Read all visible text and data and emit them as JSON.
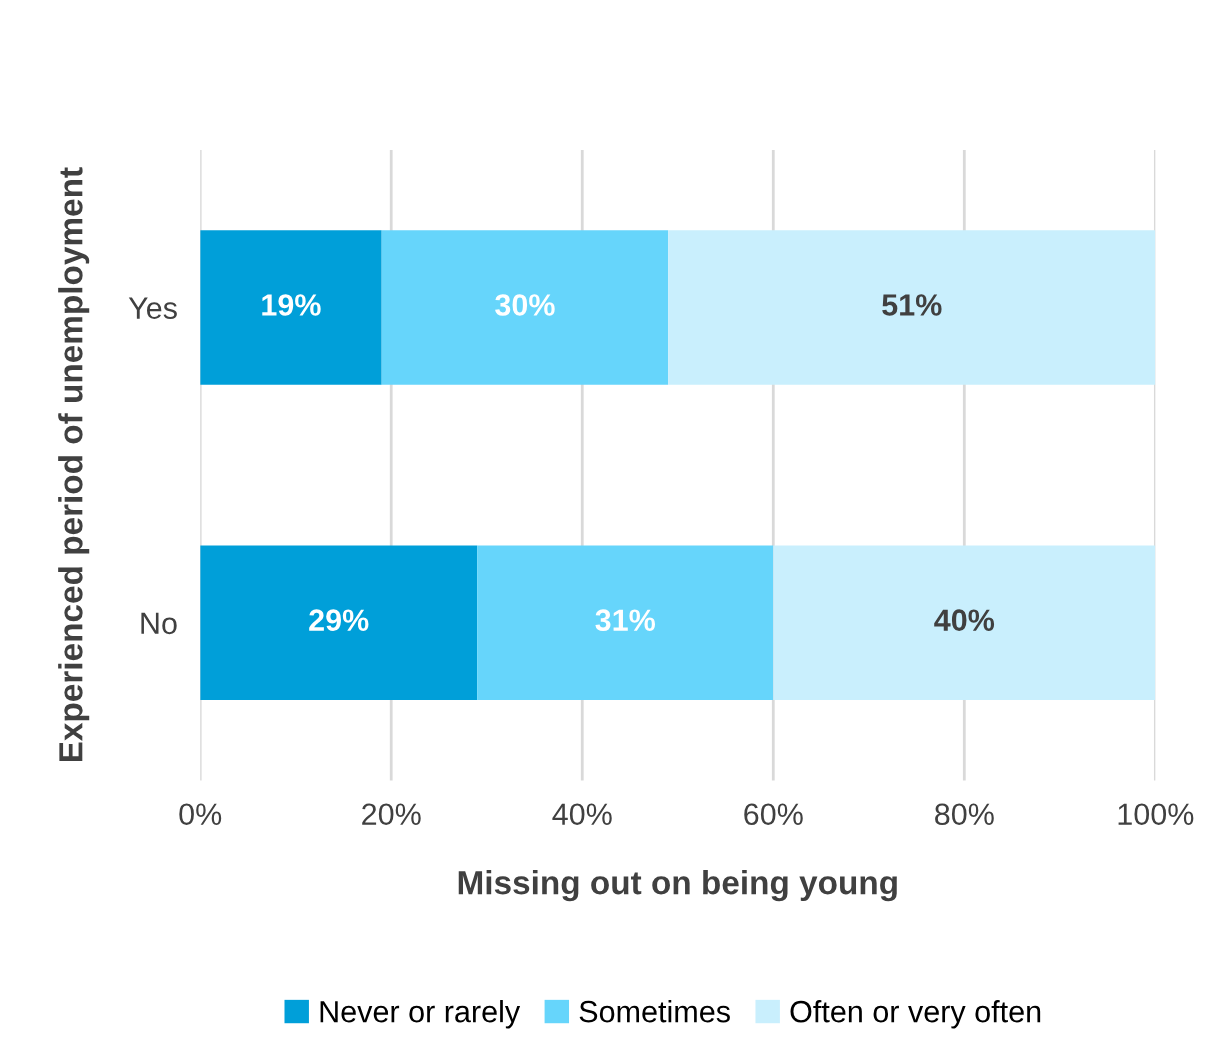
{
  "chart_data": {
    "type": "bar",
    "orientation": "horizontal",
    "stacked": true,
    "categories": [
      "Yes",
      "No"
    ],
    "series": [
      {
        "name": "Never or rarely",
        "color": "#009fd9",
        "values": [
          19,
          29
        ],
        "value_labels": [
          "19%",
          "29%"
        ]
      },
      {
        "name": "Sometimes",
        "color": "#66d5fb",
        "values": [
          30,
          31
        ],
        "value_labels": [
          "30%",
          "31%"
        ]
      },
      {
        "name": "Often or very often",
        "color": "#c9effd",
        "values": [
          51,
          40
        ],
        "value_labels": [
          "51%",
          "40%"
        ]
      }
    ],
    "xlabel": "Missing out on being young",
    "ylabel": "Experienced period of unemployment",
    "xlim": [
      0,
      100
    ],
    "xticks": [
      {
        "value": 0,
        "label": "0%"
      },
      {
        "value": 20,
        "label": "20%"
      },
      {
        "value": 40,
        "label": "40%"
      },
      {
        "value": 60,
        "label": "60%"
      },
      {
        "value": 80,
        "label": "80%"
      },
      {
        "value": 100,
        "label": "100%"
      }
    ],
    "grid": "x",
    "legend": "bottom"
  }
}
